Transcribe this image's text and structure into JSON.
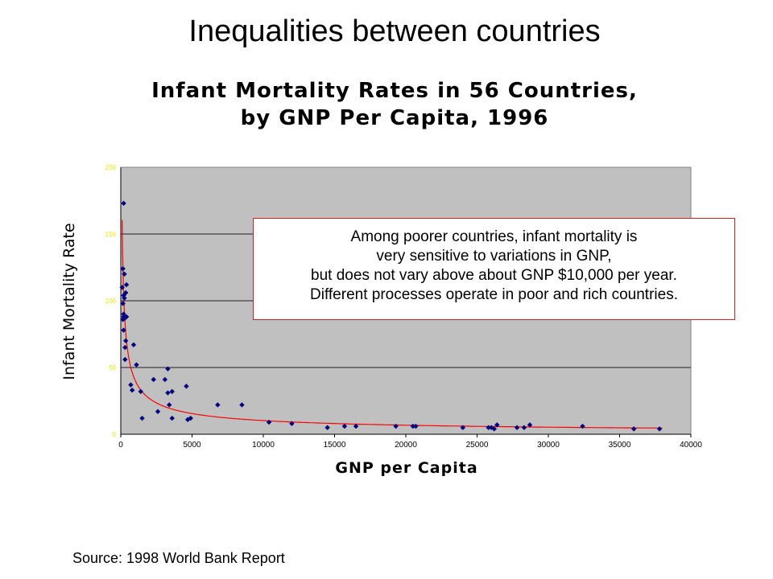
{
  "slide": {
    "title": "Inequalities between countries",
    "source": "Source: 1998 World Bank Report"
  },
  "annotation": {
    "lines": [
      "Among poorer countries, infant mortality is",
      "very sensitive to variations in GNP,",
      "but does not vary above about GNP $10,000 per year.",
      "Different processes operate in poor and rich countries."
    ]
  },
  "colors": {
    "plot_background": "#c0c0c0",
    "marker": "#000080",
    "trend_line": "#ff0000",
    "grid": "#404040",
    "tick_label": "#e8e800"
  },
  "chart_data": {
    "type": "scatter",
    "title_lines": [
      "Infant Mortality Rates in 56 Countries,",
      "by GNP Per Capita, 1996"
    ],
    "xlabel": "GNP per Capita",
    "ylabel": "Infant Mortality Rate",
    "xlim": [
      0,
      40000
    ],
    "ylim": [
      0,
      200
    ],
    "xticks": [
      0,
      5000,
      10000,
      15000,
      20000,
      25000,
      30000,
      35000,
      40000
    ],
    "yticks": [
      0,
      50,
      100,
      150,
      200
    ],
    "grid": true,
    "trend": "power",
    "points": [
      [
        150,
        124
      ],
      [
        100,
        110
      ],
      [
        250,
        120
      ],
      [
        200,
        104
      ],
      [
        150,
        98
      ],
      [
        200,
        88
      ],
      [
        150,
        86
      ],
      [
        300,
        87
      ],
      [
        400,
        88
      ],
      [
        200,
        78
      ],
      [
        350,
        70
      ],
      [
        300,
        65
      ],
      [
        400,
        112
      ],
      [
        350,
        106
      ],
      [
        250,
        102
      ],
      [
        200,
        90
      ],
      [
        300,
        56
      ],
      [
        900,
        67
      ],
      [
        1100,
        52
      ],
      [
        700,
        37
      ],
      [
        800,
        33
      ],
      [
        1400,
        32
      ],
      [
        1500,
        12
      ],
      [
        2300,
        41
      ],
      [
        2600,
        17
      ],
      [
        3100,
        41
      ],
      [
        3300,
        49
      ],
      [
        3300,
        31
      ],
      [
        3600,
        32
      ],
      [
        3400,
        22
      ],
      [
        3600,
        12
      ],
      [
        4600,
        36
      ],
      [
        4700,
        11
      ],
      [
        4900,
        12
      ],
      [
        6800,
        22
      ],
      [
        8500,
        22
      ],
      [
        10400,
        9
      ],
      [
        12000,
        8
      ],
      [
        14500,
        5
      ],
      [
        15700,
        6
      ],
      [
        16500,
        6
      ],
      [
        19300,
        6
      ],
      [
        20500,
        6
      ],
      [
        20700,
        6
      ],
      [
        24000,
        5
      ],
      [
        25800,
        5
      ],
      [
        26000,
        5
      ],
      [
        26200,
        4
      ],
      [
        26400,
        7
      ],
      [
        27800,
        5
      ],
      [
        28300,
        5
      ],
      [
        28700,
        7
      ],
      [
        32400,
        6
      ],
      [
        36000,
        4
      ],
      [
        37800,
        4
      ],
      [
        200,
        173
      ]
    ]
  }
}
